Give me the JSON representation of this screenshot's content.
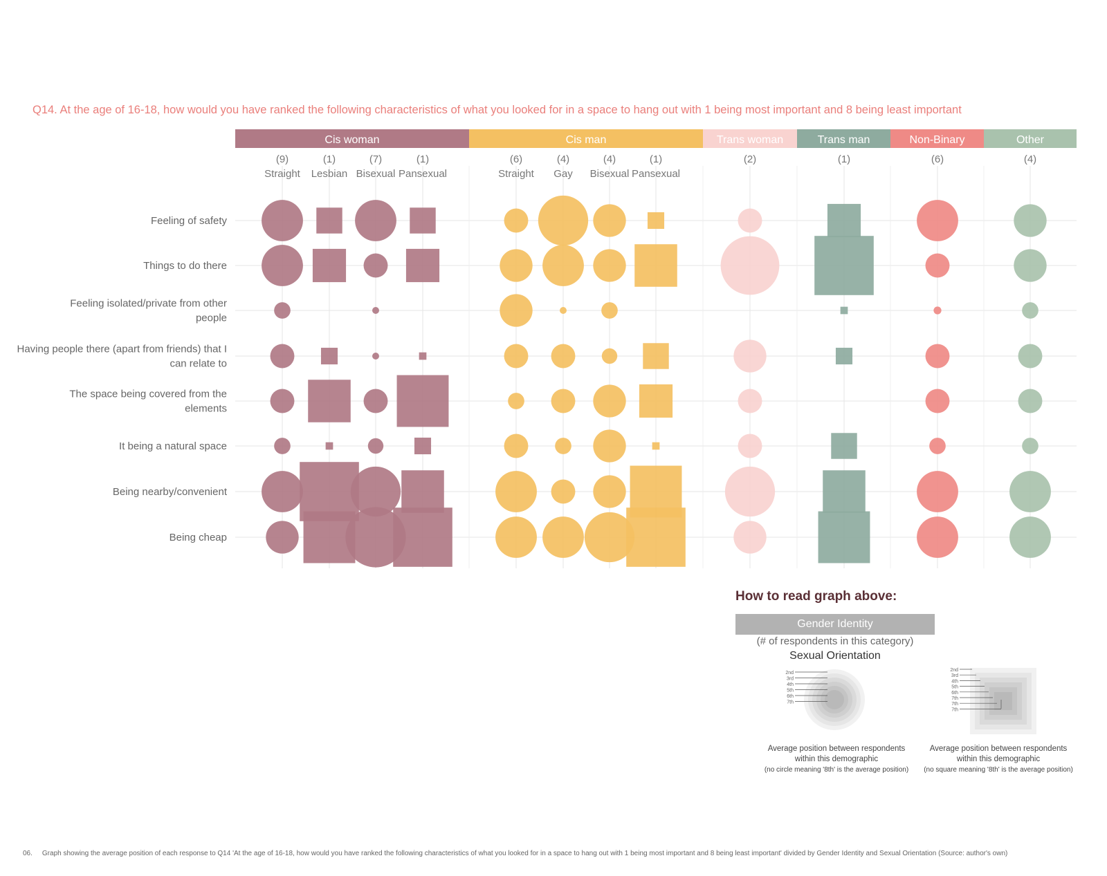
{
  "title": "Q14. At the age of 16-18, how would you have ranked the following characteristics of what you looked for in a space to hang out with 1 being most important and 8 being least important",
  "chart_data": {
    "type": "bubble-matrix",
    "rows": [
      "Feeling of safety",
      "Things to do there",
      "Feeling isolated/private from other people",
      "Having people there (apart from friends) that I can relate to",
      "The space being covered from the elements",
      "It being a natural space",
      "Being nearby/convenient",
      "Being cheap"
    ],
    "groups": [
      {
        "name": "Cis woman",
        "color": "#b07a86",
        "subgroups": [
          {
            "count": "(9)",
            "name": "Straight",
            "shape": "circle",
            "values": [
              4.8,
              4.8,
              1.9,
              2.8,
              2.8,
              1.9,
              4.8,
              3.8
            ]
          },
          {
            "count": "(1)",
            "name": "Lesbian",
            "shape": "square",
            "values": [
              2.8,
              3.6,
              0,
              1.8,
              4.6,
              0.8,
              6.4,
              5.6
            ]
          },
          {
            "count": "(7)",
            "name": "Bisexual",
            "shape": "circle",
            "values": [
              4.8,
              2.8,
              0.8,
              0.8,
              2.8,
              1.8,
              5.8,
              7.0
            ]
          },
          {
            "count": "(1)",
            "name": "Pansexual",
            "shape": "square",
            "values": [
              2.8,
              3.6,
              0,
              0.8,
              5.6,
              1.8,
              4.6,
              6.4
            ]
          }
        ]
      },
      {
        "name": "Cis man",
        "color": "#f4c062",
        "subgroups": [
          {
            "count": "(6)",
            "name": "Straight",
            "shape": "circle",
            "values": [
              2.8,
              3.8,
              3.8,
              2.8,
              1.9,
              2.8,
              4.8,
              4.8
            ]
          },
          {
            "count": "(4)",
            "name": "Gay",
            "shape": "circle",
            "values": [
              5.8,
              4.8,
              0.8,
              2.8,
              2.8,
              1.9,
              2.8,
              4.8
            ]
          },
          {
            "count": "(4)",
            "name": "Bisexual",
            "shape": "circle",
            "values": [
              3.8,
              3.8,
              1.9,
              1.8,
              3.8,
              3.8,
              3.8,
              5.8
            ]
          },
          {
            "count": "(1)",
            "name": "Pansexual",
            "shape": "square",
            "values": [
              1.8,
              4.6,
              0,
              2.8,
              3.6,
              0.8,
              5.6,
              6.4
            ]
          }
        ]
      },
      {
        "name": "Trans woman",
        "color": "#f9d3d0",
        "subgroups": [
          {
            "count": "(2)",
            "name": "",
            "shape": "circle",
            "values": [
              2.8,
              6.8,
              0,
              3.8,
              2.8,
              2.8,
              5.8,
              3.8
            ]
          }
        ]
      },
      {
        "name": "Trans man",
        "color": "#8eab9f",
        "subgroups": [
          {
            "count": "(1)",
            "name": "",
            "shape": "square",
            "values": [
              3.6,
              6.4,
              0.8,
              1.8,
              0,
              2.8,
              4.6,
              5.6
            ]
          }
        ]
      },
      {
        "name": "Non-Binary",
        "color": "#ef8a86",
        "subgroups": [
          {
            "count": "(6)",
            "name": "",
            "shape": "circle",
            "values": [
              4.8,
              2.8,
              0.9,
              2.8,
              2.8,
              1.9,
              4.8,
              4.8
            ]
          }
        ]
      },
      {
        "name": "Other",
        "color": "#a9c2ad",
        "subgroups": [
          {
            "count": "(4)",
            "name": "",
            "shape": "circle",
            "values": [
              3.8,
              3.8,
              1.9,
              2.8,
              2.8,
              1.9,
              4.8,
              4.8
            ]
          }
        ]
      }
    ]
  },
  "legend": {
    "title": "How to read graph above:",
    "group_label": "Gender Identity",
    "count_label": "(# of respondents in this category)",
    "orientation_label": "Sexual Orientation",
    "circle_ranks": [
      "2nd",
      "3rd",
      "4th",
      "5th",
      "6th",
      "7th"
    ],
    "square_ranks": [
      "2nd",
      "3rd",
      "4th",
      "5th",
      "6th",
      "7th",
      "7th",
      "7th"
    ],
    "circle_desc": "Average position between respondents within this demographic",
    "circle_note": "(no circle meaning '8th' is the average position)",
    "square_desc": "Average position between respondents within this demographic",
    "square_note": "(no square meaning '8th' is the average position)"
  },
  "caption": {
    "number": "06.",
    "text": "Graph showing the average position of each response to Q14 'At the age of 16-18, how would you have ranked the following characteristics of what you looked for in a space to hang out with 1 being most important and 8 being least important' divided by Gender Identity and Sexual Orientation (Source: author's own)"
  }
}
